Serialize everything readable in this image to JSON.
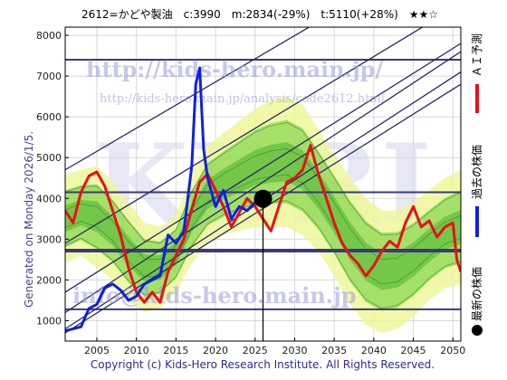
{
  "header": {
    "title": "2612=かどや製油　c:3990　m:2834(-29%)　t:5110(+28%)　★★☆"
  },
  "generated_label": "Generated on Monday 2026/1/5.",
  "copyright": "Copyright (c) Kids-Hero Research Institute. All Rights Reserved.",
  "watermarks": {
    "url": "http://kids-hero.main.jp/",
    "analysis_url": "http://kids-hero.main.jp/analysis/code2612.html",
    "email": "info@kids-hero.main.jp",
    "big": "KHRI"
  },
  "legend": {
    "ai": "ＡＩ予測",
    "past": "過去の株価",
    "latest": "最新の株価"
  },
  "colors": {
    "ai": "#e8101a",
    "past": "#1020e0",
    "latest": "#000000",
    "band_light": "#eef79a",
    "band_green": "#66cc33",
    "hline": "#3a3a7a",
    "trend": "#2a2a6a"
  },
  "chart_data": {
    "type": "line",
    "title": "2612=かどや製油　c:3990　m:2834(-29%)　t:5110(+28%)　★★☆",
    "xlim": [
      2001,
      2051
    ],
    "ylim": [
      500,
      8200
    ],
    "x_ticks": [
      2005,
      2010,
      2015,
      2020,
      2025,
      2030,
      2035,
      2040,
      2045,
      2050
    ],
    "y_ticks": [
      1000,
      2000,
      3000,
      4000,
      5000,
      6000,
      7000,
      8000
    ],
    "grid": true,
    "current": {
      "x": 2026.0,
      "y": 3990
    },
    "hlines": [
      {
        "y": 7400,
        "width": 2
      },
      {
        "y": 4150,
        "width": 2
      },
      {
        "y": 2720,
        "width": 4
      },
      {
        "y": 1280,
        "width": 2
      }
    ],
    "trend_lines": [
      [
        [
          2001,
          4700
        ],
        [
          2038,
          8900
        ]
      ],
      [
        [
          2001,
          2900
        ],
        [
          2047,
          8300
        ]
      ],
      [
        [
          2001,
          1700
        ],
        [
          2051,
          7800
        ]
      ],
      [
        [
          2001,
          1200
        ],
        [
          2051,
          7600
        ]
      ],
      [
        [
          2001,
          800
        ],
        [
          2051,
          7100
        ]
      ],
      [
        [
          2001,
          700
        ],
        [
          2051,
          6800
        ]
      ]
    ],
    "series": [
      {
        "name": "ＡＩ予測",
        "points": [
          [
            2001.0,
            3700
          ],
          [
            2002.0,
            3400
          ],
          [
            2003.0,
            4150
          ],
          [
            2004.0,
            4550
          ],
          [
            2005.0,
            4650
          ],
          [
            2006.0,
            4300
          ],
          [
            2007.0,
            3700
          ],
          [
            2008.0,
            3100
          ],
          [
            2009.0,
            2300
          ],
          [
            2010.0,
            1700
          ],
          [
            2011.0,
            1450
          ],
          [
            2012.0,
            1700
          ],
          [
            2013.0,
            1450
          ],
          [
            2014.0,
            2200
          ],
          [
            2015.0,
            2600
          ],
          [
            2016.0,
            3000
          ],
          [
            2017.0,
            3750
          ],
          [
            2018.0,
            4400
          ],
          [
            2019.0,
            4600
          ],
          [
            2020.0,
            4200
          ],
          [
            2021.0,
            3800
          ],
          [
            2022.0,
            3300
          ],
          [
            2023.0,
            3650
          ],
          [
            2024.0,
            4000
          ],
          [
            2025.0,
            3800
          ],
          [
            2026.0,
            3500
          ],
          [
            2027.0,
            3200
          ],
          [
            2028.0,
            3800
          ],
          [
            2029.0,
            4400
          ],
          [
            2030.0,
            4500
          ],
          [
            2031.0,
            4700
          ],
          [
            2032.0,
            5300
          ],
          [
            2033.0,
            4600
          ],
          [
            2034.0,
            4000
          ],
          [
            2035.0,
            3400
          ],
          [
            2036.0,
            2900
          ],
          [
            2037.0,
            2600
          ],
          [
            2038.0,
            2400
          ],
          [
            2039.0,
            2100
          ],
          [
            2040.0,
            2350
          ],
          [
            2041.0,
            2700
          ],
          [
            2042.0,
            2950
          ],
          [
            2043.0,
            2800
          ],
          [
            2044.0,
            3400
          ],
          [
            2045.0,
            3800
          ],
          [
            2046.0,
            3300
          ],
          [
            2047.0,
            3450
          ],
          [
            2048.0,
            3050
          ],
          [
            2049.0,
            3300
          ],
          [
            2050.0,
            3400
          ],
          [
            2050.5,
            2500
          ],
          [
            2051.0,
            2200
          ]
        ]
      },
      {
        "name": "過去の株価",
        "points": [
          [
            2001.0,
            750
          ],
          [
            2002.0,
            800
          ],
          [
            2003.0,
            850
          ],
          [
            2004.0,
            1300
          ],
          [
            2005.0,
            1400
          ],
          [
            2006.0,
            1800
          ],
          [
            2007.0,
            1900
          ],
          [
            2008.0,
            1750
          ],
          [
            2009.0,
            1500
          ],
          [
            2010.0,
            1600
          ],
          [
            2011.0,
            1900
          ],
          [
            2012.0,
            2000
          ],
          [
            2013.0,
            2100
          ],
          [
            2014.0,
            3100
          ],
          [
            2015.0,
            2900
          ],
          [
            2016.0,
            3200
          ],
          [
            2017.0,
            4800
          ],
          [
            2017.5,
            6800
          ],
          [
            2018.0,
            7200
          ],
          [
            2018.5,
            5200
          ],
          [
            2019.0,
            4500
          ],
          [
            2020.0,
            3800
          ],
          [
            2021.0,
            4200
          ],
          [
            2022.0,
            3500
          ],
          [
            2023.0,
            3800
          ],
          [
            2024.0,
            3700
          ],
          [
            2025.0,
            3900
          ],
          [
            2026.0,
            3990
          ]
        ]
      }
    ],
    "band": [
      [
        2001,
        2400,
        4600
      ],
      [
        2003,
        2600,
        4700
      ],
      [
        2005,
        2300,
        4800
      ],
      [
        2007,
        2000,
        4400
      ],
      [
        2009,
        1500,
        3900
      ],
      [
        2011,
        1200,
        3400
      ],
      [
        2013,
        1300,
        3300
      ],
      [
        2015,
        1700,
        3600
      ],
      [
        2017,
        2400,
        4600
      ],
      [
        2019,
        2900,
        5300
      ],
      [
        2021,
        3100,
        5600
      ],
      [
        2023,
        3200,
        5900
      ],
      [
        2025,
        3300,
        6200
      ],
      [
        2027,
        3300,
        6400
      ],
      [
        2029,
        3300,
        6500
      ],
      [
        2031,
        3100,
        6300
      ],
      [
        2033,
        2700,
        5700
      ],
      [
        2035,
        2100,
        5100
      ],
      [
        2037,
        1400,
        4500
      ],
      [
        2039,
        900,
        4000
      ],
      [
        2041,
        700,
        3700
      ],
      [
        2043,
        800,
        3700
      ],
      [
        2045,
        1100,
        3900
      ],
      [
        2047,
        1500,
        4200
      ],
      [
        2049,
        1800,
        4500
      ],
      [
        2051,
        1900,
        4700
      ]
    ]
  }
}
